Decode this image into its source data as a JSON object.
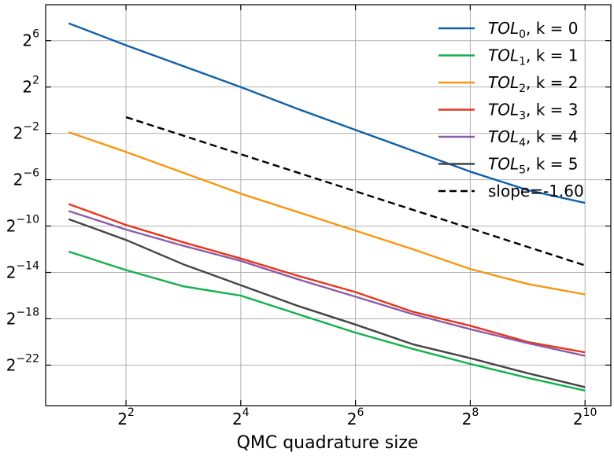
{
  "chart_data": {
    "type": "line",
    "title": "",
    "xlabel": "QMC quadrature size",
    "ylabel": "",
    "xscale": "log2",
    "yscale": "log2",
    "xlim_exp": [
      0.6,
      10.45
    ],
    "ylim_exp": [
      -25.5,
      9.1
    ],
    "grid": true,
    "legend_position": "top-right",
    "x_ticks": [
      {
        "base": "2",
        "exp": "2"
      },
      {
        "base": "2",
        "exp": "4"
      },
      {
        "base": "2",
        "exp": "6"
      },
      {
        "base": "2",
        "exp": "8"
      },
      {
        "base": "2",
        "exp": "10"
      }
    ],
    "y_ticks": [
      {
        "base": "2",
        "exp": "6"
      },
      {
        "base": "2",
        "exp": "2"
      },
      {
        "base": "2",
        "exp": "−2"
      },
      {
        "base": "2",
        "exp": "−6"
      },
      {
        "base": "2",
        "exp": "−10"
      },
      {
        "base": "2",
        "exp": "−14"
      },
      {
        "base": "2",
        "exp": "−18"
      },
      {
        "base": "2",
        "exp": "−22"
      }
    ],
    "x_exponents": [
      1,
      2,
      3,
      4,
      5,
      6,
      7,
      8,
      9,
      10
    ],
    "series": [
      {
        "name": "TOL0,k=0",
        "label_var": "TOL",
        "label_sub": "0",
        "label_rest": ", k = 0",
        "color": "#1060a8",
        "dashed": false,
        "y_exp": [
          7.5,
          5.6,
          3.8,
          2.0,
          0.1,
          -1.7,
          -3.5,
          -5.3,
          -6.9,
          -8.0
        ]
      },
      {
        "name": "TOL1,k=1",
        "label_var": "TOL",
        "label_sub": "1",
        "label_rest": ", k = 1",
        "color": "#12b24a",
        "dashed": false,
        "y_exp": [
          -12.2,
          -13.8,
          -15.2,
          -16.0,
          -17.6,
          -19.2,
          -20.6,
          -21.9,
          -23.1,
          -24.2
        ]
      },
      {
        "name": "TOL2,k=2",
        "label_var": "TOL",
        "label_sub": "2",
        "label_rest": ", k = 2",
        "color": "#f8960e",
        "dashed": false,
        "y_exp": [
          -1.9,
          -3.6,
          -5.4,
          -7.2,
          -8.8,
          -10.4,
          -12.0,
          -13.7,
          -15.0,
          -15.9
        ]
      },
      {
        "name": "TOL3,k=3",
        "label_var": "TOL",
        "label_sub": "3",
        "label_rest": ", k = 3",
        "color": "#e8341c",
        "dashed": false,
        "y_exp": [
          -8.1,
          -9.9,
          -11.4,
          -12.8,
          -14.3,
          -15.7,
          -17.4,
          -18.6,
          -20.0,
          -20.9
        ]
      },
      {
        "name": "TOL4,k=4",
        "label_var": "TOL",
        "label_sub": "4",
        "label_rest": ", k = 4",
        "color": "#8a5ea6",
        "dashed": false,
        "y_exp": [
          -8.7,
          -10.3,
          -11.7,
          -13.0,
          -14.6,
          -16.1,
          -17.6,
          -18.9,
          -20.1,
          -21.2
        ]
      },
      {
        "name": "TOL5,k=5",
        "label_var": "TOL",
        "label_sub": "5",
        "label_rest": ", k = 5",
        "color": "#444444",
        "dashed": false,
        "y_exp": [
          -9.4,
          -11.2,
          -13.3,
          -15.1,
          -16.9,
          -18.5,
          -20.2,
          -21.4,
          -22.7,
          -23.9
        ]
      }
    ],
    "reference": {
      "name": "slope=-1.60",
      "label": "slope=-1.60",
      "color": "#000000",
      "dashed": true,
      "x_exponents": [
        2,
        10
      ],
      "y_exp": [
        -0.6,
        -13.4
      ]
    }
  }
}
